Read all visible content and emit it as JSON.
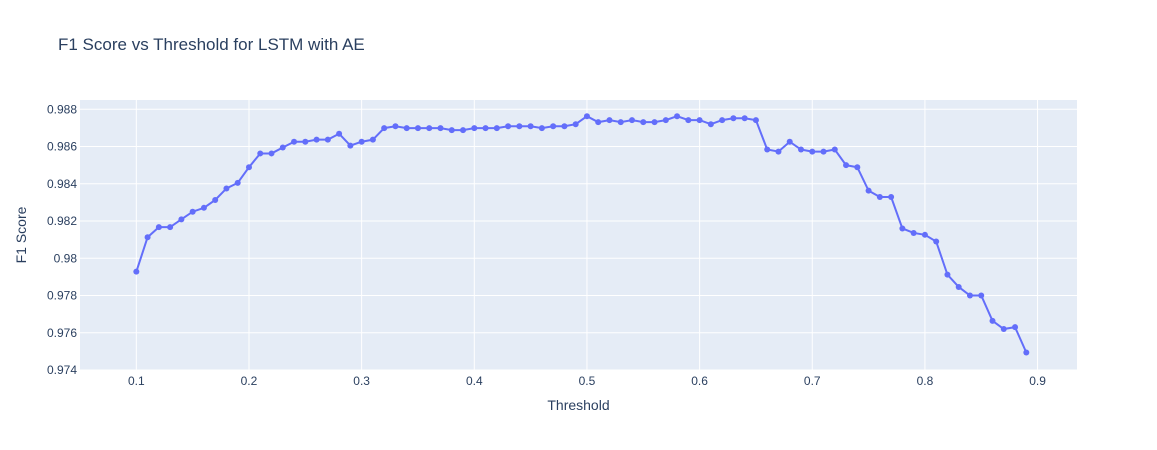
{
  "chart_data": {
    "type": "line",
    "title": "F1 Score vs Threshold for LSTM with AE",
    "xlabel": "Threshold",
    "ylabel": "F1 Score",
    "xlim": [
      0.05,
      0.935
    ],
    "ylim": [
      0.974,
      0.9885
    ],
    "xticks": [
      0.1,
      0.2,
      0.3,
      0.4,
      0.5,
      0.6,
      0.7,
      0.8,
      0.9
    ],
    "xtick_labels": [
      "0.1",
      "0.2",
      "0.3",
      "0.4",
      "0.5",
      "0.6",
      "0.7",
      "0.8",
      "0.9"
    ],
    "yticks": [
      0.974,
      0.976,
      0.978,
      0.98,
      0.982,
      0.984,
      0.986,
      0.988
    ],
    "ytick_labels": [
      "0.974",
      "0.976",
      "0.978",
      "0.98",
      "0.982",
      "0.984",
      "0.986",
      "0.988"
    ],
    "grid": true,
    "colors": {
      "line": "#636efa",
      "plot_bg": "#e5ecf6",
      "grid": "#ffffff",
      "text": "#2a3f5f"
    },
    "series": [
      {
        "mode": "lines+markers",
        "x": [
          0.1,
          0.11,
          0.12,
          0.13,
          0.14,
          0.15,
          0.16,
          0.17,
          0.18,
          0.19,
          0.2,
          0.21,
          0.22,
          0.23,
          0.24,
          0.25,
          0.26,
          0.27,
          0.28,
          0.29,
          0.3,
          0.31,
          0.32,
          0.33,
          0.34,
          0.35,
          0.36,
          0.37,
          0.38,
          0.39,
          0.4,
          0.41,
          0.42,
          0.43,
          0.44,
          0.45,
          0.46,
          0.47,
          0.48,
          0.49,
          0.5,
          0.51,
          0.52,
          0.53,
          0.54,
          0.55,
          0.56,
          0.57,
          0.58,
          0.59,
          0.6,
          0.61,
          0.62,
          0.63,
          0.64,
          0.65,
          0.66,
          0.67,
          0.68,
          0.69,
          0.7,
          0.71,
          0.72,
          0.73,
          0.74,
          0.75,
          0.76,
          0.77,
          0.78,
          0.79,
          0.8,
          0.81,
          0.82,
          0.83,
          0.84,
          0.85,
          0.86,
          0.87,
          0.88,
          0.89
        ],
        "y": [
          0.97928,
          0.98113,
          0.98167,
          0.98167,
          0.98209,
          0.9825,
          0.98271,
          0.98313,
          0.98375,
          0.98405,
          0.98489,
          0.98563,
          0.98563,
          0.98595,
          0.98626,
          0.98626,
          0.98637,
          0.98637,
          0.98669,
          0.98605,
          0.98626,
          0.98637,
          0.98699,
          0.98709,
          0.98699,
          0.98699,
          0.98699,
          0.98699,
          0.98688,
          0.98688,
          0.98699,
          0.98699,
          0.98699,
          0.98709,
          0.98709,
          0.98709,
          0.98699,
          0.98709,
          0.98709,
          0.9872,
          0.98763,
          0.98731,
          0.98742,
          0.98731,
          0.98742,
          0.98731,
          0.98731,
          0.98742,
          0.98763,
          0.98742,
          0.98742,
          0.9872,
          0.98742,
          0.98752,
          0.98752,
          0.98742,
          0.98584,
          0.98573,
          0.98626,
          0.98584,
          0.98573,
          0.98573,
          0.98584,
          0.985,
          0.98489,
          0.98363,
          0.98329,
          0.98329,
          0.9816,
          0.98136,
          0.98126,
          0.9809,
          0.97912,
          0.97846,
          0.978,
          0.978,
          0.97664,
          0.9762,
          0.9763,
          0.97494
        ]
      }
    ]
  }
}
